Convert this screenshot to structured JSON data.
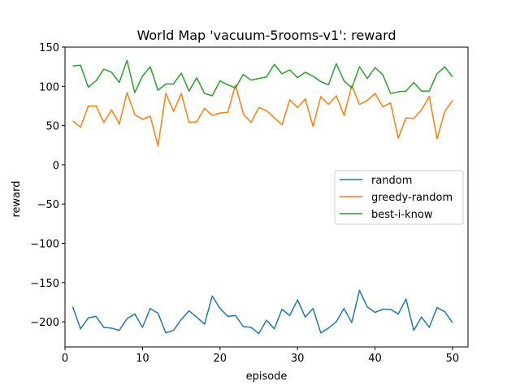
{
  "chart_data": {
    "type": "line",
    "title": "World Map 'vacuum-5rooms-v1': reward",
    "xlabel": "episode",
    "ylabel": "reward",
    "xlim": [
      0,
      52
    ],
    "ylim": [
      -232,
      150
    ],
    "x_ticks": [
      0,
      10,
      20,
      30,
      40,
      50
    ],
    "y_ticks": [
      150,
      100,
      50,
      0,
      -50,
      -100,
      -150,
      -200
    ],
    "x_tick_labels": [
      "0",
      "10",
      "20",
      "30",
      "40",
      "50"
    ],
    "y_tick_labels": [
      "150",
      "100",
      "50",
      "0",
      "−50",
      "−100",
      "−150",
      "−200"
    ],
    "grid": false,
    "legend_position": "center-right",
    "x": [
      1,
      2,
      3,
      4,
      5,
      6,
      7,
      8,
      9,
      10,
      11,
      12,
      13,
      14,
      15,
      16,
      17,
      18,
      19,
      20,
      21,
      22,
      23,
      24,
      25,
      26,
      27,
      28,
      29,
      30,
      31,
      32,
      33,
      34,
      35,
      36,
      37,
      38,
      39,
      40,
      41,
      42,
      43,
      44,
      45,
      46,
      47,
      48,
      49,
      50
    ],
    "series": [
      {
        "name": "random",
        "color": "#1f77b4",
        "values": [
          -181,
          -209,
          -195,
          -193,
          -207,
          -208,
          -211,
          -196,
          -190,
          -207,
          -183,
          -189,
          -214,
          -211,
          -197,
          -186,
          -194,
          -203,
          -167,
          -183,
          -193,
          -192,
          -206,
          -207,
          -215,
          -198,
          -209,
          -184,
          -192,
          -172,
          -194,
          -183,
          -214,
          -208,
          -200,
          -183,
          -201,
          -160,
          -181,
          -188,
          -184,
          -184,
          -190,
          -171,
          -211,
          -194,
          -207,
          -182,
          -187,
          -201
        ]
      },
      {
        "name": "greedy-random",
        "color": "#ff7f0e",
        "values": [
          56,
          48,
          75,
          75,
          54,
          70,
          52,
          92,
          64,
          58,
          62,
          24,
          91,
          68,
          91,
          54,
          55,
          72,
          63,
          66,
          67,
          102,
          65,
          54,
          73,
          69,
          60,
          51,
          83,
          73,
          84,
          49,
          87,
          77,
          88,
          63,
          101,
          77,
          82,
          91,
          74,
          79,
          34,
          60,
          59,
          70,
          87,
          33,
          68,
          82
        ]
      },
      {
        "name": "best-i-know",
        "color": "#2ca02c",
        "values": [
          126,
          127,
          99,
          107,
          122,
          118,
          105,
          133,
          92,
          113,
          125,
          95,
          103,
          103,
          117,
          94,
          111,
          91,
          88,
          107,
          102,
          98,
          115,
          108,
          110,
          112,
          128,
          116,
          121,
          111,
          118,
          113,
          106,
          102,
          129,
          107,
          98,
          125,
          110,
          124,
          115,
          91,
          93,
          94,
          105,
          94,
          94,
          116,
          125,
          112
        ]
      }
    ]
  }
}
